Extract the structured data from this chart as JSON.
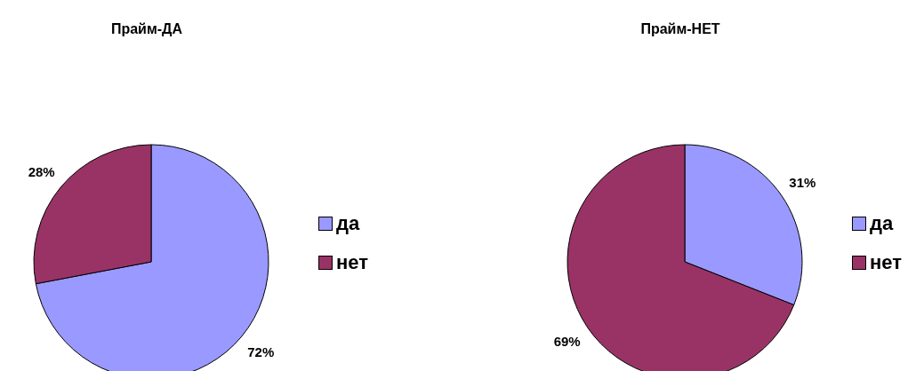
{
  "chart_data": [
    {
      "type": "pie",
      "title": "Прайм-ДА",
      "categories": [
        "да",
        "нет"
      ],
      "values": [
        72,
        28
      ],
      "value_labels": [
        "72%",
        "28%"
      ],
      "colors": [
        "#9999ff",
        "#993366"
      ],
      "legend": "right"
    },
    {
      "type": "pie",
      "title": "Прайм-НЕТ",
      "categories": [
        "да",
        "нет"
      ],
      "values": [
        31,
        69
      ],
      "value_labels": [
        "31%",
        "69%"
      ],
      "colors": [
        "#9999ff",
        "#993366"
      ],
      "legend": "right"
    }
  ]
}
